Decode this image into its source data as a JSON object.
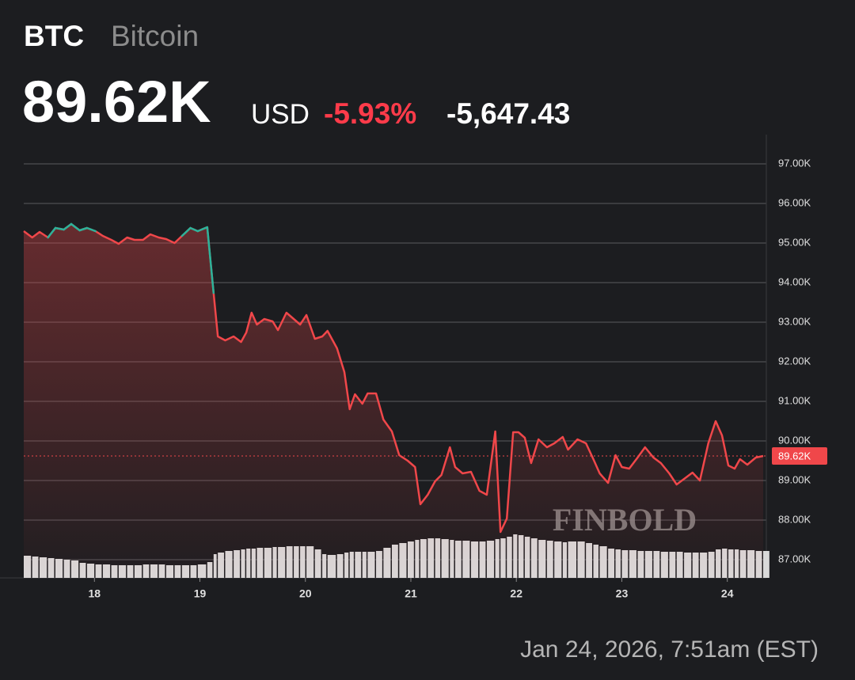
{
  "header": {
    "symbol": "BTC",
    "name": "Bitcoin",
    "price": "89.62K",
    "currency": "USD",
    "change_pct": "-5.93%",
    "change": "-5,647.43"
  },
  "timestamp": "Jan 24, 2026, 7:51am (EST)",
  "watermark": "FINBOLD",
  "chart_data": {
    "type": "line",
    "x": [
      17.33,
      17.41,
      17.48,
      17.56,
      17.63,
      17.71,
      17.78,
      17.86,
      17.93,
      18.01,
      18.08,
      18.16,
      18.23,
      18.31,
      18.38,
      18.46,
      18.53,
      18.61,
      18.68,
      18.76,
      18.83,
      18.91,
      18.98,
      19.07,
      19.13,
      19.17,
      19.24,
      19.32,
      19.39,
      19.44,
      19.49,
      19.54,
      19.61,
      19.69,
      19.74,
      19.82,
      19.89,
      19.95,
      20.01,
      20.09,
      20.16,
      20.21,
      20.3,
      20.37,
      20.42,
      20.47,
      20.54,
      20.59,
      20.67,
      20.74,
      20.82,
      20.89,
      20.97,
      21.04,
      21.09,
      21.16,
      21.23,
      21.29,
      21.37,
      21.42,
      21.49,
      21.57,
      21.65,
      21.72,
      21.8,
      21.85,
      21.91,
      21.97,
      22.02,
      22.08,
      22.14,
      22.21,
      22.29,
      22.36,
      22.44,
      22.49,
      22.58,
      22.66,
      22.73,
      22.79,
      22.87,
      22.94,
      23.0,
      23.07,
      23.15,
      23.22,
      23.3,
      23.37,
      23.45,
      23.52,
      23.59,
      23.67,
      23.74,
      23.82,
      23.89,
      23.95,
      24.01,
      24.07,
      24.12,
      24.19,
      24.27,
      24.34
    ],
    "series": [
      {
        "color": "#f0474a",
        "up_color": "#2bb39a",
        "values": [
          95300,
          95140,
          95280,
          95140,
          95380,
          95340,
          95480,
          95320,
          95380,
          95300,
          95180,
          95080,
          94980,
          95140,
          95080,
          95080,
          95220,
          95140,
          95100,
          95000,
          95180,
          95380,
          95300,
          95400,
          93740,
          92640,
          92540,
          92640,
          92500,
          92740,
          93240,
          92940,
          93080,
          93020,
          92800,
          93240,
          93080,
          92940,
          93180,
          92580,
          92640,
          92780,
          92340,
          91740,
          90800,
          91180,
          90940,
          91200,
          91200,
          90540,
          90240,
          89640,
          89500,
          89340,
          88400,
          88640,
          88980,
          89140,
          89840,
          89340,
          89180,
          89220,
          88740,
          88640,
          90240,
          87700,
          88040,
          90220,
          90220,
          90080,
          89440,
          90040,
          89840,
          89940,
          90100,
          89780,
          90040,
          89940,
          89540,
          89180,
          88940,
          89640,
          89340,
          89300,
          89580,
          89840,
          89580,
          89440,
          89180,
          88900,
          89040,
          89200,
          89000,
          89940,
          90500,
          90140,
          89380,
          89300,
          89540,
          89400,
          89580,
          89620
        ]
      }
    ],
    "volume": [
      28,
      27,
      26,
      25,
      24,
      23,
      22,
      19,
      18,
      17,
      17,
      16,
      16,
      16,
      16,
      17,
      17,
      17,
      16,
      16,
      16,
      16,
      17,
      20,
      30,
      32,
      34,
      35,
      36,
      37,
      37,
      38,
      38,
      39,
      39,
      40,
      40,
      40,
      40,
      36,
      30,
      29,
      30,
      32,
      33,
      33,
      33,
      33,
      34,
      38,
      42,
      44,
      46,
      48,
      49,
      50,
      50,
      49,
      48,
      47,
      47,
      46,
      46,
      47,
      49,
      50,
      52,
      55,
      54,
      52,
      50,
      48,
      47,
      46,
      45,
      46,
      46,
      44,
      42,
      40,
      37,
      36,
      35,
      35,
      34,
      34,
      34,
      33,
      33,
      33,
      32,
      32,
      32,
      33,
      36,
      37,
      36,
      36,
      35,
      35,
      34,
      34
    ],
    "volume_color": "#d9d9d9",
    "last_price": {
      "value": 89620,
      "label": "89.62K"
    },
    "xlim": [
      17.33,
      24.37
    ],
    "xticks": [
      18,
      19,
      20,
      21,
      22,
      23,
      24
    ],
    "ylim": [
      86540,
      97740
    ],
    "yticks": [
      {
        "value": 87000,
        "label": "87.00K"
      },
      {
        "value": 88000,
        "label": "88.00K"
      },
      {
        "value": 89000,
        "label": "89.00K"
      },
      {
        "value": 90000,
        "label": "90.00K"
      },
      {
        "value": 91000,
        "label": "91.00K"
      },
      {
        "value": 92000,
        "label": "92.00K"
      },
      {
        "value": 93000,
        "label": "93.00K"
      },
      {
        "value": 94000,
        "label": "94.00K"
      },
      {
        "value": 95000,
        "label": "95.00K"
      },
      {
        "value": 96000,
        "label": "96.00K"
      },
      {
        "value": 97000,
        "label": "97.00K"
      }
    ],
    "grid": true
  }
}
